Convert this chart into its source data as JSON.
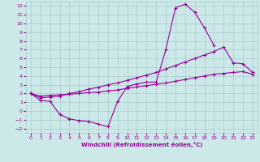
{
  "xlabel": "Windchill (Refroidissement éolien,°C)",
  "xlim": [
    -0.5,
    23.5
  ],
  "ylim": [
    -2.5,
    12.5
  ],
  "xticks": [
    0,
    1,
    2,
    3,
    4,
    5,
    6,
    7,
    8,
    9,
    10,
    11,
    12,
    13,
    14,
    15,
    16,
    17,
    18,
    19,
    20,
    21,
    22,
    23
  ],
  "yticks": [
    -2,
    -1,
    0,
    1,
    2,
    3,
    4,
    5,
    6,
    7,
    8,
    9,
    10,
    11,
    12
  ],
  "bg_color": "#cce8e8",
  "grid_color": "#aacccc",
  "line_color": "#990099",
  "line1_x": [
    0,
    1,
    2,
    3,
    4,
    5,
    6,
    7,
    8,
    9,
    10,
    11,
    12,
    13,
    14,
    15,
    16,
    17,
    18,
    19
  ],
  "line1_y": [
    2.0,
    1.2,
    1.1,
    -0.4,
    -0.9,
    -1.1,
    -1.2,
    -1.5,
    -1.8,
    1.1,
    2.8,
    3.1,
    3.3,
    3.3,
    7.0,
    11.8,
    12.2,
    11.3,
    9.5,
    7.5
  ],
  "line2_x": [
    0,
    1,
    2,
    3,
    4,
    5,
    6,
    7,
    8,
    9,
    10,
    11,
    12,
    13,
    14,
    15,
    16,
    17,
    18,
    19,
    20,
    21,
    22,
    23
  ],
  "line2_y": [
    2.0,
    1.7,
    1.8,
    1.85,
    1.9,
    2.0,
    2.1,
    2.15,
    2.3,
    2.4,
    2.6,
    2.75,
    2.9,
    3.05,
    3.2,
    3.4,
    3.6,
    3.8,
    4.0,
    4.2,
    4.3,
    4.4,
    4.5,
    4.2
  ],
  "line3_x": [
    0,
    1,
    2,
    3,
    4,
    5,
    6,
    7,
    8,
    9,
    10,
    11,
    12,
    13,
    14,
    15,
    16,
    17,
    18,
    19,
    20,
    21,
    22,
    23
  ],
  "line3_y": [
    2.0,
    1.5,
    1.6,
    1.7,
    2.0,
    2.2,
    2.5,
    2.7,
    3.0,
    3.2,
    3.5,
    3.8,
    4.1,
    4.4,
    4.8,
    5.2,
    5.6,
    6.0,
    6.4,
    6.8,
    7.3,
    5.5,
    5.4,
    4.4
  ]
}
